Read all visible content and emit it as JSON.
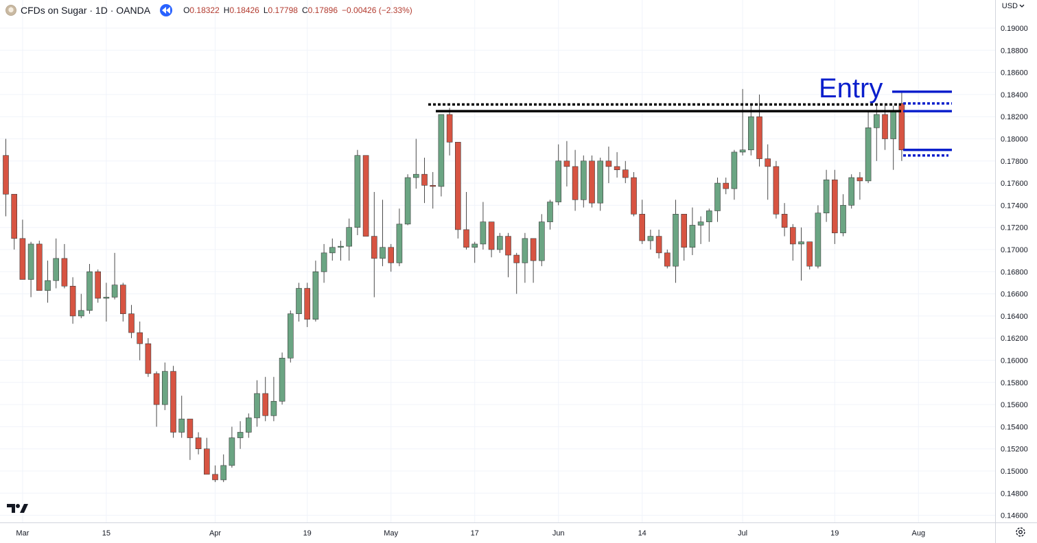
{
  "header": {
    "symbol_title": "CFDs on Sugar · 1D · OANDA",
    "open_label": "O",
    "open_value": "0.18322",
    "high_label": "H",
    "high_value": "0.18426",
    "low_label": "L",
    "low_value": "0.17798",
    "close_label": "C",
    "close_value": "0.17896",
    "change_value": "−0.00426 (−2.33%)"
  },
  "currency": {
    "label": "USD",
    "icon": "chevron-down-icon"
  },
  "colors": {
    "up": "#6ba583",
    "down": "#d75442",
    "wick": "#4a4a4a",
    "annotation": "#0a1fcc"
  },
  "chart_data": {
    "type": "candlestick",
    "ylim": [
      0.1455,
      0.1912
    ],
    "y_ticks": [
      "0.19000",
      "0.18800",
      "0.18600",
      "0.18400",
      "0.18200",
      "0.18000",
      "0.17800",
      "0.17600",
      "0.17400",
      "0.17200",
      "0.17000",
      "0.16800",
      "0.16600",
      "0.16400",
      "0.16200",
      "0.16000",
      "0.15800",
      "0.15600",
      "0.15400",
      "0.15200",
      "0.15000",
      "0.14800",
      "0.14600"
    ],
    "x_labels": [
      {
        "label": "Mar",
        "index": 2
      },
      {
        "label": "15",
        "index": 12
      },
      {
        "label": "Apr",
        "index": 25
      },
      {
        "label": "19",
        "index": 36
      },
      {
        "label": "May",
        "index": 46
      },
      {
        "label": "17",
        "index": 56
      },
      {
        "label": "Jun",
        "index": 66
      },
      {
        "label": "14",
        "index": 76
      },
      {
        "label": "Jul",
        "index": 88
      },
      {
        "label": "19",
        "index": 99
      },
      {
        "label": "Aug",
        "index": 109
      }
    ],
    "candles": [
      [
        0.1785,
        0.18,
        0.173,
        0.175
      ],
      [
        0.175,
        0.175,
        0.17,
        0.171
      ],
      [
        0.171,
        0.1727,
        0.1673,
        0.1673
      ],
      [
        0.1673,
        0.1707,
        0.1657,
        0.1705
      ],
      [
        0.1705,
        0.1708,
        0.1663,
        0.1663
      ],
      [
        0.1663,
        0.169,
        0.1652,
        0.1672
      ],
      [
        0.1672,
        0.171,
        0.1665,
        0.1692
      ],
      [
        0.1692,
        0.1705,
        0.1665,
        0.1667
      ],
      [
        0.1667,
        0.1675,
        0.1633,
        0.164
      ],
      [
        0.164,
        0.166,
        0.1638,
        0.1645
      ],
      [
        0.1645,
        0.1687,
        0.1642,
        0.168
      ],
      [
        0.168,
        0.1682,
        0.1652,
        0.1656
      ],
      [
        0.1656,
        0.167,
        0.1635,
        0.1657
      ],
      [
        0.1657,
        0.1697,
        0.1655,
        0.1668
      ],
      [
        0.1668,
        0.167,
        0.1635,
        0.1642
      ],
      [
        0.1642,
        0.165,
        0.162,
        0.1625
      ],
      [
        0.1625,
        0.1635,
        0.16,
        0.1615
      ],
      [
        0.1615,
        0.162,
        0.1585,
        0.1588
      ],
      [
        0.1588,
        0.159,
        0.154,
        0.156
      ],
      [
        0.156,
        0.1598,
        0.1555,
        0.159
      ],
      [
        0.159,
        0.1595,
        0.153,
        0.1535
      ],
      [
        0.1535,
        0.1568,
        0.153,
        0.1547
      ],
      [
        0.1547,
        0.1547,
        0.151,
        0.153
      ],
      [
        0.153,
        0.1535,
        0.1515,
        0.152
      ],
      [
        0.152,
        0.153,
        0.1497,
        0.1497
      ],
      [
        0.1497,
        0.1505,
        0.149,
        0.1492
      ],
      [
        0.1492,
        0.1515,
        0.149,
        0.1505
      ],
      [
        0.1505,
        0.154,
        0.1503,
        0.153
      ],
      [
        0.153,
        0.1545,
        0.152,
        0.1535
      ],
      [
        0.1535,
        0.1552,
        0.153,
        0.1548
      ],
      [
        0.1548,
        0.1582,
        0.154,
        0.157
      ],
      [
        0.157,
        0.1585,
        0.1545,
        0.155
      ],
      [
        0.155,
        0.1585,
        0.1545,
        0.1563
      ],
      [
        0.1563,
        0.1607,
        0.156,
        0.1602
      ],
      [
        0.1602,
        0.1645,
        0.1598,
        0.1642
      ],
      [
        0.1642,
        0.167,
        0.1635,
        0.1665
      ],
      [
        0.1665,
        0.167,
        0.163,
        0.1637
      ],
      [
        0.1637,
        0.169,
        0.1635,
        0.168
      ],
      [
        0.168,
        0.1705,
        0.167,
        0.1697
      ],
      [
        0.1697,
        0.171,
        0.169,
        0.1702
      ],
      [
        0.1702,
        0.1708,
        0.169,
        0.1703
      ],
      [
        0.1703,
        0.1728,
        0.169,
        0.172
      ],
      [
        0.172,
        0.179,
        0.1713,
        0.1785
      ],
      [
        0.1785,
        0.1785,
        0.1712,
        0.1712
      ],
      [
        0.1712,
        0.1752,
        0.1657,
        0.1692
      ],
      [
        0.1692,
        0.1745,
        0.1685,
        0.1702
      ],
      [
        0.1702,
        0.1705,
        0.168,
        0.1688
      ],
      [
        0.1688,
        0.1737,
        0.1685,
        0.1723
      ],
      [
        0.1723,
        0.1768,
        0.1722,
        0.1765
      ],
      [
        0.1765,
        0.18,
        0.1755,
        0.1768
      ],
      [
        0.1768,
        0.1783,
        0.1742,
        0.1758
      ],
      [
        0.1758,
        0.177,
        0.1737,
        0.1757
      ],
      [
        0.1757,
        0.1822,
        0.1748,
        0.1822
      ],
      [
        0.1822,
        0.1828,
        0.1785,
        0.1797
      ],
      [
        0.1797,
        0.1797,
        0.171,
        0.1718
      ],
      [
        0.1718,
        0.1752,
        0.17,
        0.1702
      ],
      [
        0.1702,
        0.1707,
        0.1688,
        0.1705
      ],
      [
        0.1705,
        0.1743,
        0.17,
        0.1725
      ],
      [
        0.1725,
        0.1725,
        0.1693,
        0.17
      ],
      [
        0.17,
        0.1715,
        0.1697,
        0.1712
      ],
      [
        0.1712,
        0.1715,
        0.1675,
        0.1695
      ],
      [
        0.1695,
        0.1697,
        0.166,
        0.1688
      ],
      [
        0.1688,
        0.1715,
        0.167,
        0.171
      ],
      [
        0.171,
        0.171,
        0.167,
        0.169
      ],
      [
        0.169,
        0.1732,
        0.1685,
        0.1725
      ],
      [
        0.1725,
        0.1745,
        0.1718,
        0.1743
      ],
      [
        0.1743,
        0.1795,
        0.174,
        0.178
      ],
      [
        0.178,
        0.1798,
        0.1757,
        0.1775
      ],
      [
        0.1775,
        0.179,
        0.1735,
        0.1745
      ],
      [
        0.1745,
        0.1785,
        0.1738,
        0.178
      ],
      [
        0.178,
        0.1785,
        0.1738,
        0.1742
      ],
      [
        0.1742,
        0.1783,
        0.1735,
        0.178
      ],
      [
        0.178,
        0.1793,
        0.176,
        0.1775
      ],
      [
        0.1775,
        0.1788,
        0.1765,
        0.1772
      ],
      [
        0.1772,
        0.178,
        0.176,
        0.1765
      ],
      [
        0.1765,
        0.177,
        0.173,
        0.1732
      ],
      [
        0.1732,
        0.1745,
        0.1705,
        0.1708
      ],
      [
        0.1708,
        0.1718,
        0.17,
        0.1712
      ],
      [
        0.1712,
        0.1718,
        0.1692,
        0.1697
      ],
      [
        0.1697,
        0.17,
        0.1683,
        0.1685
      ],
      [
        0.1685,
        0.1745,
        0.167,
        0.1732
      ],
      [
        0.1732,
        0.1732,
        0.169,
        0.1702
      ],
      [
        0.1702,
        0.1738,
        0.1695,
        0.1722
      ],
      [
        0.1722,
        0.173,
        0.1705,
        0.1725
      ],
      [
        0.1725,
        0.1737,
        0.1707,
        0.1735
      ],
      [
        0.1735,
        0.1765,
        0.1725,
        0.176
      ],
      [
        0.176,
        0.1765,
        0.175,
        0.1755
      ],
      [
        0.1755,
        0.179,
        0.1745,
        0.1788
      ],
      [
        0.1788,
        0.1845,
        0.1785,
        0.179
      ],
      [
        0.179,
        0.1832,
        0.1785,
        0.182
      ],
      [
        0.182,
        0.184,
        0.1775,
        0.1782
      ],
      [
        0.1782,
        0.1795,
        0.1745,
        0.1775
      ],
      [
        0.1775,
        0.178,
        0.1728,
        0.1732
      ],
      [
        0.1732,
        0.1742,
        0.1712,
        0.172
      ],
      [
        0.172,
        0.1723,
        0.169,
        0.1705
      ],
      [
        0.1705,
        0.172,
        0.1672,
        0.1707
      ],
      [
        0.1707,
        0.1707,
        0.1682,
        0.1685
      ],
      [
        0.1685,
        0.174,
        0.1683,
        0.1733
      ],
      [
        0.1733,
        0.1772,
        0.1725,
        0.1763
      ],
      [
        0.1763,
        0.1772,
        0.1705,
        0.1715
      ],
      [
        0.1715,
        0.175,
        0.1712,
        0.174
      ],
      [
        0.174,
        0.1768,
        0.1737,
        0.1765
      ],
      [
        0.1765,
        0.177,
        0.1745,
        0.1762
      ],
      [
        0.1762,
        0.1825,
        0.176,
        0.181
      ],
      [
        0.181,
        0.1832,
        0.178,
        0.1822
      ],
      [
        0.1822,
        0.183,
        0.179,
        0.18
      ],
      [
        0.18,
        0.183,
        0.1772,
        0.1825
      ],
      [
        0.1832,
        0.1843,
        0.178,
        0.179
      ]
    ],
    "annotations": {
      "label": "Entry",
      "resistance_dotted": 0.1831,
      "resistance_solid": 0.1825,
      "entry_level": 0.18426,
      "box_top_dotted": 0.1832,
      "box_top_solid": 0.1825,
      "box_bottom_solid": 0.179,
      "box_bottom_dotted": 0.1785
    }
  }
}
